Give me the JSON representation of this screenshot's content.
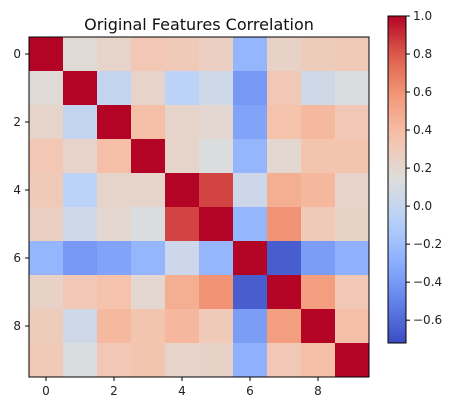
{
  "chart_data": {
    "type": "heatmap",
    "title": "Original Features Correlation",
    "x_ticks": [
      "0",
      "2",
      "4",
      "6",
      "8"
    ],
    "y_ticks": [
      "0",
      "2",
      "4",
      "6",
      "8"
    ],
    "colormap": "coolwarm",
    "vmin": -0.72,
    "vmax": 1.0,
    "colorbar_ticks": [
      "1.0",
      "0.8",
      "0.6",
      "0.4",
      "0.2",
      "0.0",
      "−0.2",
      "−0.4",
      "−0.6"
    ],
    "matrix": [
      [
        1.0,
        0.17,
        0.22,
        0.33,
        0.3,
        0.26,
        -0.25,
        0.24,
        0.29,
        0.31
      ],
      [
        0.17,
        1.0,
        -0.01,
        0.23,
        -0.05,
        0.05,
        -0.4,
        0.32,
        0.06,
        0.12
      ],
      [
        0.22,
        -0.01,
        1.0,
        0.38,
        0.22,
        0.2,
        -0.35,
        0.36,
        0.41,
        0.32
      ],
      [
        0.33,
        0.23,
        0.38,
        1.0,
        0.22,
        0.13,
        -0.25,
        0.2,
        0.35,
        0.35
      ],
      [
        0.3,
        -0.05,
        0.22,
        0.22,
        1.0,
        0.85,
        0.04,
        0.47,
        0.42,
        0.23
      ],
      [
        0.26,
        0.05,
        0.2,
        0.13,
        0.85,
        1.0,
        -0.25,
        0.6,
        0.3,
        0.24
      ],
      [
        -0.25,
        -0.4,
        -0.35,
        -0.25,
        0.04,
        -0.25,
        1.0,
        -0.65,
        -0.38,
        -0.28
      ],
      [
        0.24,
        0.32,
        0.36,
        0.2,
        0.47,
        0.6,
        -0.65,
        1.0,
        0.55,
        0.32
      ],
      [
        0.29,
        0.06,
        0.41,
        0.35,
        0.42,
        0.3,
        -0.38,
        0.55,
        1.0,
        0.38
      ],
      [
        0.31,
        0.12,
        0.32,
        0.35,
        0.23,
        0.24,
        -0.28,
        0.32,
        0.38,
        1.0
      ]
    ]
  }
}
